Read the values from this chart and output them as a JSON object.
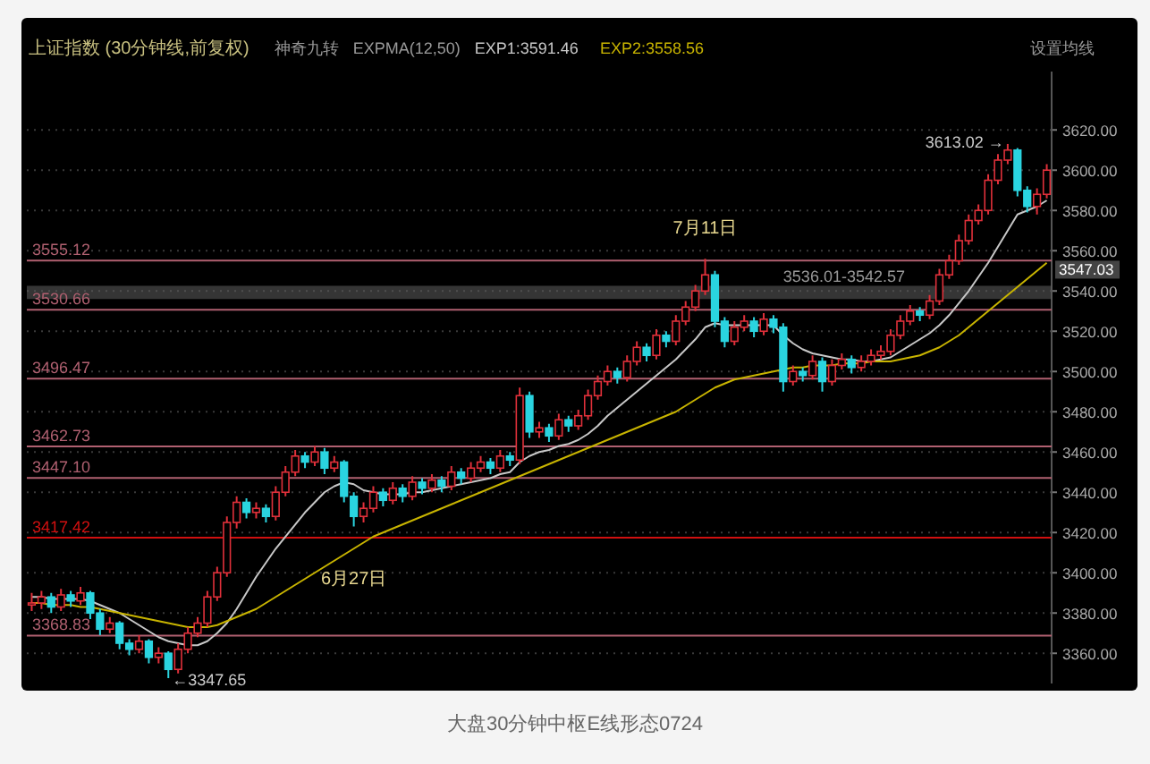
{
  "chart_data": {
    "type": "candlestick",
    "title": "大盘30分钟中枢E线形态0724",
    "subtitle": "上证指数 (30分钟线,前复权)",
    "categories": [
      null,
      null,
      null,
      null,
      null,
      null,
      null,
      null,
      null,
      null,
      null,
      null,
      null,
      null,
      null,
      null,
      null,
      null,
      null,
      null,
      null,
      null,
      null,
      null,
      null,
      null,
      null,
      null,
      null,
      null,
      null,
      null,
      null,
      null,
      null,
      null,
      null,
      null,
      null,
      null,
      null,
      null,
      null,
      null,
      null,
      null,
      null,
      null,
      null,
      null,
      null,
      null,
      null,
      null,
      null,
      null,
      null,
      null,
      null,
      null,
      null,
      null,
      null,
      null,
      null,
      null,
      null,
      null,
      null,
      null,
      null,
      null,
      null,
      null,
      null,
      null,
      null,
      null,
      null,
      null,
      null,
      null,
      null,
      null,
      null,
      null,
      null,
      null,
      null,
      null,
      null,
      null,
      null,
      null,
      null,
      null,
      null,
      null,
      null,
      null,
      null,
      null,
      null,
      null,
      null
    ],
    "ohlc": [
      [
        3384,
        3390,
        3381,
        3385
      ],
      [
        3385,
        3391,
        3382,
        3388
      ],
      [
        3388,
        3390,
        3380,
        3383
      ],
      [
        3383,
        3392,
        3381,
        3389
      ],
      [
        3389,
        3391,
        3383,
        3386
      ],
      [
        3386,
        3393,
        3384,
        3390
      ],
      [
        3390,
        3391,
        3377,
        3380
      ],
      [
        3380,
        3382,
        3369,
        3372
      ],
      [
        3372,
        3378,
        3370,
        3375
      ],
      [
        3375,
        3376,
        3362,
        3365
      ],
      [
        3365,
        3367,
        3359,
        3362
      ],
      [
        3362,
        3369,
        3360,
        3366
      ],
      [
        3366,
        3367,
        3355,
        3358
      ],
      [
        3358,
        3363,
        3355,
        3360
      ],
      [
        3360,
        3361,
        3347.65,
        3352
      ],
      [
        3352,
        3365,
        3350,
        3362
      ],
      [
        3362,
        3373,
        3360,
        3370
      ],
      [
        3370,
        3378,
        3368,
        3375
      ],
      [
        3375,
        3391,
        3373,
        3388
      ],
      [
        3388,
        3403,
        3386,
        3400
      ],
      [
        3400,
        3428,
        3398,
        3425
      ],
      [
        3425,
        3438,
        3422,
        3435
      ],
      [
        3435,
        3437,
        3427,
        3430
      ],
      [
        3430,
        3435,
        3427,
        3432
      ],
      [
        3432,
        3434,
        3425,
        3428
      ],
      [
        3428,
        3443,
        3426,
        3440
      ],
      [
        3440,
        3453,
        3438,
        3450
      ],
      [
        3450,
        3461,
        3448,
        3458
      ],
      [
        3458,
        3460,
        3452,
        3455
      ],
      [
        3455,
        3463,
        3453,
        3460
      ],
      [
        3460,
        3462,
        3449,
        3452
      ],
      [
        3452,
        3458,
        3450,
        3455
      ],
      [
        3455,
        3456,
        3435,
        3438
      ],
      [
        3438,
        3440,
        3423,
        3428
      ],
      [
        3428,
        3435,
        3425,
        3432
      ],
      [
        3432,
        3443,
        3430,
        3440
      ],
      [
        3440,
        3442,
        3433,
        3436
      ],
      [
        3436,
        3445,
        3434,
        3442
      ],
      [
        3442,
        3444,
        3435,
        3438
      ],
      [
        3438,
        3448,
        3436,
        3445
      ],
      [
        3445,
        3447,
        3439,
        3442
      ],
      [
        3442,
        3449,
        3440,
        3446
      ],
      [
        3446,
        3448,
        3440,
        3443
      ],
      [
        3443,
        3453,
        3441,
        3450
      ],
      [
        3450,
        3452,
        3444,
        3447
      ],
      [
        3447,
        3455,
        3445,
        3452
      ],
      [
        3452,
        3458,
        3450,
        3455
      ],
      [
        3455,
        3457,
        3449,
        3452
      ],
      [
        3452,
        3461,
        3450,
        3458
      ],
      [
        3458,
        3460,
        3453,
        3456
      ],
      [
        3456,
        3492,
        3454,
        3488
      ],
      [
        3488,
        3490,
        3467,
        3470
      ],
      [
        3470,
        3475,
        3467,
        3472
      ],
      [
        3472,
        3474,
        3465,
        3468
      ],
      [
        3468,
        3479,
        3466,
        3476
      ],
      [
        3476,
        3478,
        3470,
        3473
      ],
      [
        3473,
        3481,
        3471,
        3478
      ],
      [
        3478,
        3491,
        3476,
        3488
      ],
      [
        3488,
        3498,
        3486,
        3495
      ],
      [
        3495,
        3503,
        3493,
        3500
      ],
      [
        3500,
        3502,
        3494,
        3497
      ],
      [
        3497,
        3508,
        3495,
        3505
      ],
      [
        3505,
        3515,
        3503,
        3512
      ],
      [
        3512,
        3514,
        3505,
        3508
      ],
      [
        3508,
        3521,
        3506,
        3518
      ],
      [
        3518,
        3520,
        3512,
        3515
      ],
      [
        3515,
        3528,
        3513,
        3525
      ],
      [
        3525,
        3535,
        3523,
        3532
      ],
      [
        3532,
        3543,
        3530,
        3540
      ],
      [
        3540,
        3556,
        3538,
        3548
      ],
      [
        3548,
        3550,
        3522,
        3525
      ],
      [
        3525,
        3527,
        3512,
        3515
      ],
      [
        3515,
        3525,
        3513,
        3522
      ],
      [
        3522,
        3528,
        3520,
        3525
      ],
      [
        3525,
        3527,
        3517,
        3520
      ],
      [
        3520,
        3529,
        3518,
        3526
      ],
      [
        3526,
        3528,
        3519,
        3522
      ],
      [
        3522,
        3524,
        3490,
        3495
      ],
      [
        3495,
        3503,
        3493,
        3500
      ],
      [
        3500,
        3502,
        3495,
        3498
      ],
      [
        3498,
        3508,
        3496,
        3505
      ],
      [
        3505,
        3507,
        3490,
        3495
      ],
      [
        3495,
        3506,
        3493,
        3503
      ],
      [
        3503,
        3509,
        3501,
        3506
      ],
      [
        3506,
        3508,
        3499,
        3502
      ],
      [
        3502,
        3508,
        3500,
        3505
      ],
      [
        3505,
        3511,
        3503,
        3508
      ],
      [
        3508,
        3513,
        3506,
        3510
      ],
      [
        3510,
        3521,
        3508,
        3518
      ],
      [
        3518,
        3528,
        3516,
        3525
      ],
      [
        3525,
        3533,
        3523,
        3530
      ],
      [
        3530,
        3532,
        3525,
        3528
      ],
      [
        3528,
        3538,
        3526,
        3535
      ],
      [
        3535,
        3551,
        3533,
        3548
      ],
      [
        3548,
        3558,
        3546,
        3555
      ],
      [
        3555,
        3568,
        3553,
        3565
      ],
      [
        3565,
        3578,
        3563,
        3575
      ],
      [
        3575,
        3583,
        3573,
        3580
      ],
      [
        3580,
        3598,
        3578,
        3595
      ],
      [
        3595,
        3608,
        3593,
        3605
      ],
      [
        3605,
        3613.02,
        3603,
        3610
      ],
      [
        3610,
        3611,
        3587,
        3590
      ],
      [
        3590,
        3592,
        3579,
        3582
      ],
      [
        3582,
        3591,
        3578,
        3588
      ],
      [
        3588,
        3603,
        3586,
        3600
      ]
    ],
    "series": [
      {
        "name": "EXP1:3591.46",
        "type": "line",
        "color": "#c8c8c8",
        "values": [
          3388,
          3388,
          3387,
          3387,
          3387,
          3387,
          3386,
          3384,
          3382,
          3380,
          3377,
          3374,
          3371,
          3368,
          3366,
          3365,
          3364,
          3364,
          3366,
          3370,
          3375,
          3382,
          3390,
          3398,
          3405,
          3412,
          3418,
          3424,
          3430,
          3435,
          3440,
          3443,
          3445,
          3444,
          3441,
          3440,
          3439,
          3439,
          3439,
          3440,
          3440,
          3441,
          3442,
          3443,
          3444,
          3445,
          3446,
          3447,
          3449,
          3450,
          3455,
          3458,
          3460,
          3461,
          3463,
          3464,
          3466,
          3469,
          3473,
          3478,
          3482,
          3486,
          3490,
          3494,
          3498,
          3502,
          3506,
          3511,
          3516,
          3522,
          3524,
          3523,
          3523,
          3523,
          3523,
          3523,
          3523,
          3518,
          3514,
          3511,
          3509,
          3508,
          3507,
          3506,
          3506,
          3505,
          3505,
          3506,
          3507,
          3510,
          3513,
          3516,
          3519,
          3523,
          3528,
          3534,
          3540,
          3547,
          3554,
          3562,
          3570,
          3578,
          3580,
          3582,
          3585
        ]
      },
      {
        "name": "EXP2:3558.56",
        "type": "line",
        "color": "#c8b400",
        "values": [
          3385,
          3385,
          3384,
          3384,
          3384,
          3383,
          3383,
          3382,
          3381,
          3380,
          3379,
          3378,
          3377,
          3376,
          3375,
          3374,
          3373,
          3373,
          3373,
          3374,
          3376,
          3378,
          3380,
          3382,
          3385,
          3388,
          3391,
          3394,
          3397,
          3400,
          3403,
          3406,
          3409,
          3412,
          3415,
          3418,
          3420,
          3422,
          3424,
          3426,
          3428,
          3430,
          3432,
          3434,
          3436,
          3438,
          3440,
          3442,
          3444,
          3446,
          3448,
          3450,
          3452,
          3454,
          3456,
          3458,
          3460,
          3462,
          3464,
          3466,
          3468,
          3470,
          3472,
          3474,
          3476,
          3478,
          3480,
          3483,
          3486,
          3489,
          3492,
          3494,
          3496,
          3497,
          3498,
          3499,
          3500,
          3501,
          3502,
          3502,
          3503,
          3503,
          3503,
          3504,
          3504,
          3504,
          3505,
          3505,
          3505,
          3506,
          3507,
          3508,
          3510,
          3512,
          3515,
          3518,
          3522,
          3526,
          3530,
          3534,
          3538,
          3542,
          3546,
          3550,
          3554
        ]
      }
    ],
    "ylim": [
      3345,
      3649
    ],
    "yticks": [
      {
        "value": 3360,
        "label": "3360.00"
      },
      {
        "value": 3380,
        "label": "3380.00"
      },
      {
        "value": 3400,
        "label": "3400.00"
      },
      {
        "value": 3420,
        "label": "3420.00"
      },
      {
        "value": 3440,
        "label": "3440.00"
      },
      {
        "value": 3460,
        "label": "3460.00"
      },
      {
        "value": 3480,
        "label": "3480.00"
      },
      {
        "value": 3500,
        "label": "3500.00"
      },
      {
        "value": 3520,
        "label": "3520.00"
      },
      {
        "value": 3540,
        "label": "3540.00"
      },
      {
        "value": 3560,
        "label": "3560.00"
      },
      {
        "value": 3580,
        "label": "3580.00"
      },
      {
        "value": 3600,
        "label": "3600.00"
      },
      {
        "value": 3620,
        "label": "3620.00"
      }
    ],
    "grid": "y",
    "legend": "top left",
    "ref_lines": [
      {
        "axis": "y",
        "value": 3555.12,
        "label": "3555.12",
        "color": "#b06070"
      },
      {
        "axis": "y",
        "value": 3530.66,
        "label": "3530.66",
        "color": "#b06070"
      },
      {
        "axis": "y",
        "value": 3496.47,
        "label": "3496.47",
        "color": "#b06070"
      },
      {
        "axis": "y",
        "value": 3462.73,
        "label": "3462.73",
        "color": "#b06070"
      },
      {
        "axis": "y",
        "value": 3447.1,
        "label": "3447.10",
        "color": "#b06070"
      },
      {
        "axis": "y",
        "value": 3417.42,
        "label": "3417.42",
        "color": "#d01010"
      },
      {
        "axis": "y",
        "value": 3368.83,
        "label": "3368.83",
        "color": "#b06070"
      }
    ],
    "bands": [
      {
        "axis": "y",
        "from": 3536.01,
        "to": 3542.57,
        "label": "3536.01-3542.57",
        "color": "#606060"
      }
    ],
    "annotations": [
      "神奇九转",
      "EXPMA(12,50)",
      "设置均线",
      "3613.02 →",
      "←3347.65",
      {
        "text": "6月27日",
        "y": 3423
      },
      {
        "text": "7月11日",
        "y": 3556
      },
      "3547.03"
    ]
  }
}
